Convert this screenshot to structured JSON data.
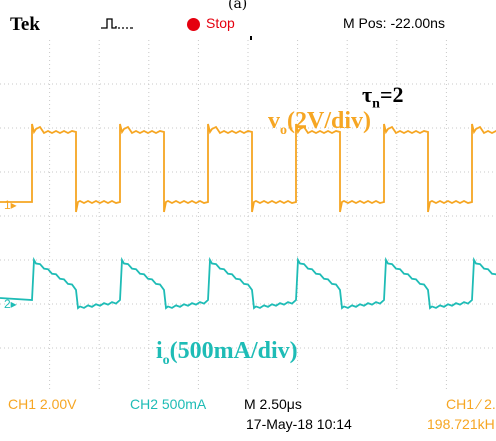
{
  "figure_label": "(a)",
  "header": {
    "brand": "Tek",
    "trigger_icon": "trigger-pulse-icon",
    "run_status": "Stop",
    "mpos": "M Pos: -22.00ns"
  },
  "annotations": {
    "tau": "τ",
    "tau_sub": "n",
    "tau_value": "=2",
    "vo_main": "v",
    "vo_sub": "o",
    "vo_scale": "(2V/div)",
    "io_main": "i",
    "io_sub": "o",
    "io_scale": "(500mA/div)"
  },
  "markers": {
    "ch1": "1▸",
    "ch2": "2▸"
  },
  "readout": {
    "ch1_scale": "CH1  2.00V",
    "ch2_scale": "CH2  500mA",
    "timebase": "M 2.50μs",
    "datetime": "17-May-18 10:14",
    "trigger_setting": "CH1 ∕ 2.",
    "frequency": "198.721kH"
  },
  "colors": {
    "ch1": "#f6a623",
    "ch2": "#1ebcb6",
    "grid": "#c8c8c8",
    "stop": "#e5000f"
  }
}
